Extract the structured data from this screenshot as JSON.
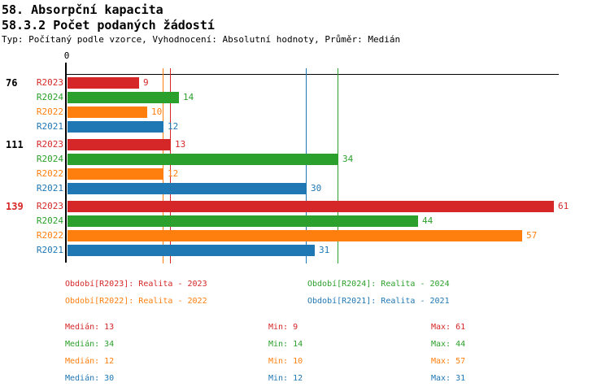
{
  "header": {
    "title1": "58. Absorpční kapacita",
    "title2": "58.3.2 Počet podaných žádostí",
    "meta": "Typ: Počítaný podle vzorce, Vyhodnocení: Absolutní hodnoty, Průměr: Medián"
  },
  "chart_data": {
    "type": "bar",
    "orientation": "horizontal",
    "title": "58.3.2 Počet podaných žádostí",
    "x_axis": {
      "min": 0,
      "tick_labels": [
        "0"
      ],
      "origin_label": "0"
    },
    "grid": false,
    "series_colors": {
      "R2023": "#d62728",
      "R2024": "#2ca02c",
      "R2022": "#ff7f0e",
      "R2021": "#1f77b4"
    },
    "groups": [
      {
        "label": "76",
        "label_color": "#000000",
        "bars": [
          {
            "series": "R2023",
            "value": 9
          },
          {
            "series": "R2024",
            "value": 14
          },
          {
            "series": "R2022",
            "value": 10
          },
          {
            "series": "R2021",
            "value": 12
          }
        ]
      },
      {
        "label": "111",
        "label_color": "#000000",
        "bars": [
          {
            "series": "R2023",
            "value": 13
          },
          {
            "series": "R2024",
            "value": 34
          },
          {
            "series": "R2022",
            "value": 12
          },
          {
            "series": "R2021",
            "value": 30
          }
        ]
      },
      {
        "label": "139",
        "label_color": "#d62728",
        "bars": [
          {
            "series": "R2023",
            "value": 61
          },
          {
            "series": "R2024",
            "value": 44
          },
          {
            "series": "R2022",
            "value": 57
          },
          {
            "series": "R2021",
            "value": 31
          }
        ]
      }
    ],
    "median_lines": [
      {
        "series": "R2022",
        "value": 12
      },
      {
        "series": "R2023",
        "value": 13
      },
      {
        "series": "R2021",
        "value": 30
      },
      {
        "series": "R2024",
        "value": 34
      }
    ]
  },
  "legend": {
    "items": [
      {
        "series": "R2023",
        "label": "Období[R2023]: Realita - 2023",
        "color": "#d62728"
      },
      {
        "series": "R2024",
        "label": "Období[R2024]: Realita - 2024",
        "color": "#2ca02c"
      },
      {
        "series": "R2022",
        "label": "Období[R2022]: Realita - 2022",
        "color": "#ff7f0e"
      },
      {
        "series": "R2021",
        "label": "Období[R2021]: Realita - 2021",
        "color": "#1f77b4"
      }
    ]
  },
  "stats": {
    "labels": {
      "median": "Medián",
      "min": "Min",
      "max": "Max"
    },
    "rows": [
      {
        "series": "R2023",
        "color": "#d62728",
        "median": 13,
        "min": 9,
        "max": 61
      },
      {
        "series": "R2024",
        "color": "#2ca02c",
        "median": 34,
        "min": 14,
        "max": 44
      },
      {
        "series": "R2022",
        "color": "#ff7f0e",
        "median": 12,
        "min": 10,
        "max": 57
      },
      {
        "series": "R2021",
        "color": "#1f77b4",
        "median": 30,
        "min": 12,
        "max": 31
      }
    ]
  }
}
